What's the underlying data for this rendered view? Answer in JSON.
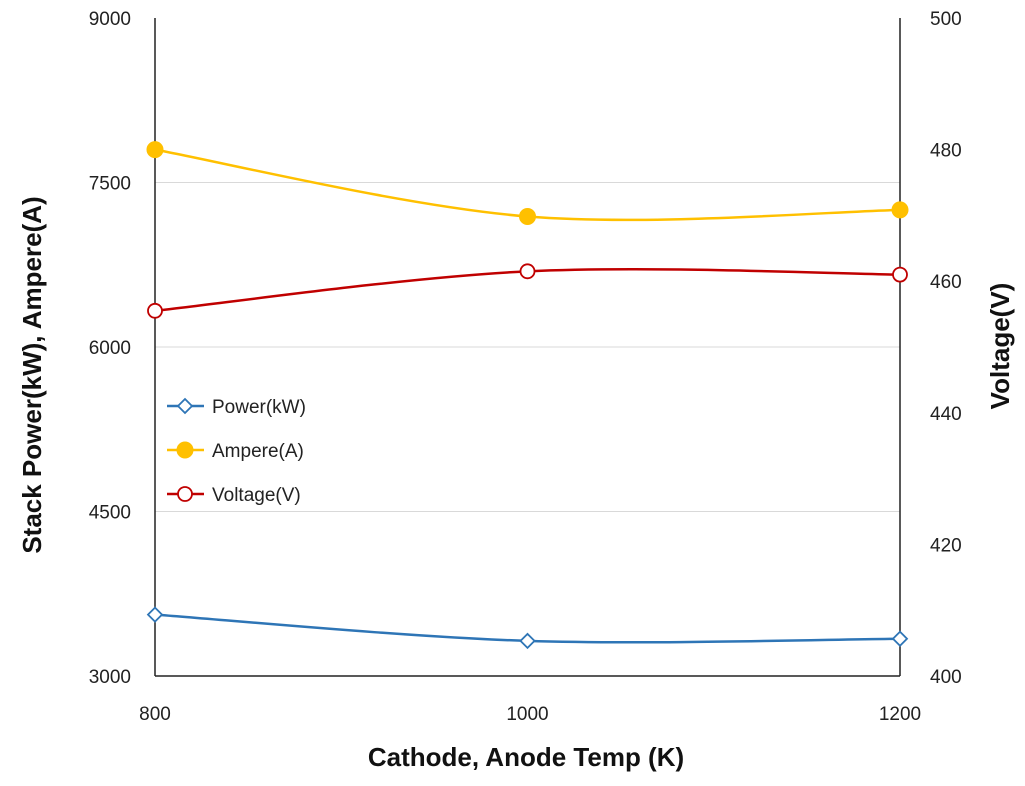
{
  "chart_data": {
    "type": "line",
    "xlabel": "Cathode, Anode Temp (K)",
    "ylabel": "Stack Power(kW),  Ampere(A)",
    "y2label": "Voltage(V)",
    "x": [
      800,
      1000,
      1200
    ],
    "xlim": [
      800,
      1200
    ],
    "xticks": [
      "800",
      "1000",
      "1200"
    ],
    "ylim": [
      3000,
      9000
    ],
    "yticks": [
      "3000",
      "4500",
      "6000",
      "7500",
      "9000"
    ],
    "y2lim": [
      400,
      500
    ],
    "y2ticks": [
      "400",
      "420",
      "440",
      "460",
      "480",
      "500"
    ],
    "grid": "horizontal",
    "legend_position": "left",
    "series": [
      {
        "name": "Power(kW)",
        "axis": "left",
        "values": [
          3560,
          3320,
          3340
        ],
        "color": "#2E75B6",
        "marker": "open-diamond"
      },
      {
        "name": "Ampere(A)",
        "axis": "left",
        "values": [
          7800,
          7190,
          7250
        ],
        "color": "#FFC000",
        "marker": "filled-circle"
      },
      {
        "name": "Voltage(V)",
        "axis": "right",
        "values": [
          455.5,
          461.5,
          461
        ],
        "color": "#C00000",
        "marker": "open-circle"
      }
    ]
  }
}
